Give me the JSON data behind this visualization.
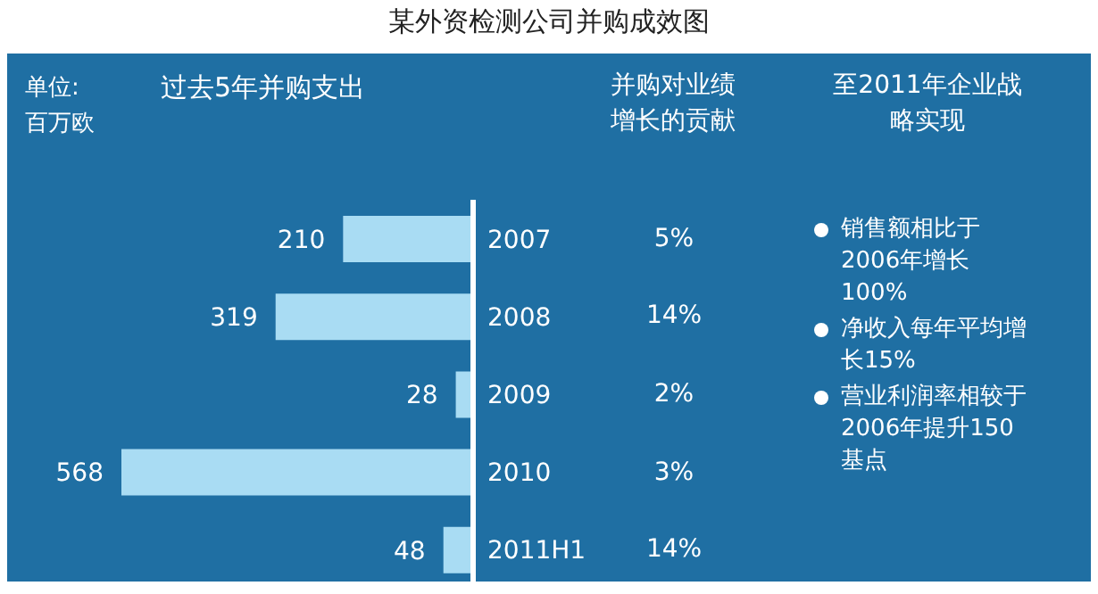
{
  "chart_data": {
    "type": "bar",
    "orientation": "horizontal",
    "title": "某外资检测公司并购成效图",
    "xlabel": "单位: 百万欧",
    "categories": [
      "2007",
      "2008",
      "2009",
      "2010",
      "2011H1"
    ],
    "values": [
      210,
      319,
      28,
      568,
      48
    ],
    "color": "#a9dcf3",
    "data_labels": true,
    "tick_labels": "y",
    "annotations": [
      "过去5年并购支出",
      "并购对业绩增长的贡献",
      "至2011年企业战略实现",
      "销售额相比于2006年增长100%",
      "净收入每年平均增长15%",
      "营业利润率相较于2006年提升150基点",
      "5%",
      "14%",
      "2%",
      "3%",
      "14%"
    ]
  }
}
